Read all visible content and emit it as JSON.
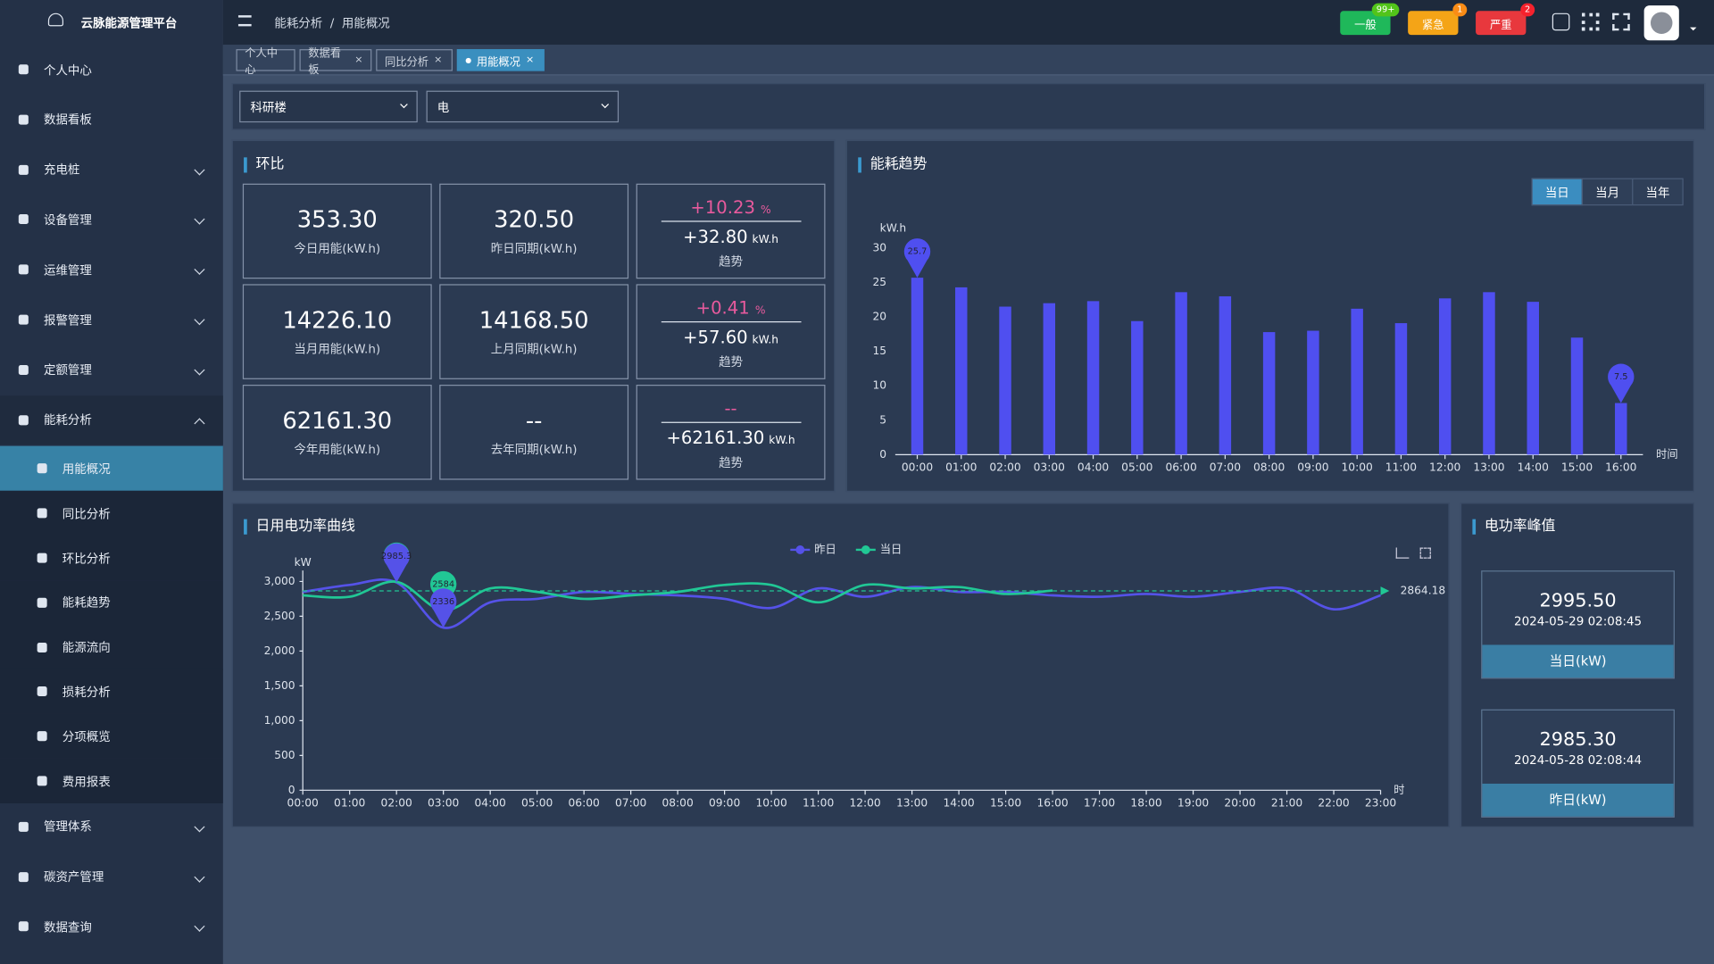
{
  "header": {
    "logo": "云脉能源管理平台",
    "breadcrumb": [
      "能耗分析",
      "用能概况"
    ],
    "alerts": [
      {
        "label": "一般",
        "count": "99+"
      },
      {
        "label": "紧急",
        "count": "1"
      },
      {
        "label": "严重",
        "count": "2"
      }
    ]
  },
  "sidebar": {
    "items": [
      {
        "label": "个人中心"
      },
      {
        "label": "数据看板"
      },
      {
        "label": "充电桩",
        "expandable": true
      },
      {
        "label": "设备管理",
        "expandable": true
      },
      {
        "label": "运维管理",
        "expandable": true
      },
      {
        "label": "报警管理",
        "expandable": true
      },
      {
        "label": "定额管理",
        "expandable": true
      },
      {
        "label": "能耗分析",
        "expandable": true,
        "expanded": true,
        "children": [
          {
            "label": "用能概况",
            "active": true
          },
          {
            "label": "同比分析"
          },
          {
            "label": "环比分析"
          },
          {
            "label": "能耗趋势"
          },
          {
            "label": "能源流向"
          },
          {
            "label": "损耗分析"
          },
          {
            "label": "分项概览"
          },
          {
            "label": "费用报表"
          }
        ]
      },
      {
        "label": "管理体系",
        "expandable": true
      },
      {
        "label": "碳资产管理",
        "expandable": true
      },
      {
        "label": "数据查询",
        "expandable": true
      }
    ]
  },
  "tabs": [
    {
      "label": "个人中心",
      "closable": false
    },
    {
      "label": "数据看板",
      "closable": true
    },
    {
      "label": "同比分析",
      "closable": true
    },
    {
      "label": "用能概况",
      "closable": true,
      "active": true
    }
  ],
  "filters": [
    "科研楼",
    "电"
  ],
  "ratio_panel": {
    "title": "环比",
    "percent_unit": "%",
    "energy_unit": "kW.h",
    "rows": [
      {
        "current": {
          "value": "353.30",
          "label": "今日用能(kW.h)"
        },
        "previous": {
          "value": "320.50",
          "label": "昨日同期(kW.h)"
        },
        "change": {
          "percent": "+10.23",
          "diff": "+32.80",
          "label": "趋势"
        }
      },
      {
        "current": {
          "value": "14226.10",
          "label": "当月用能(kW.h)"
        },
        "previous": {
          "value": "14168.50",
          "label": "上月同期(kW.h)"
        },
        "change": {
          "percent": "+0.41",
          "diff": "+57.60",
          "label": "趋势"
        }
      },
      {
        "current": {
          "value": "62161.30",
          "label": "今年用能(kW.h)"
        },
        "previous": {
          "value": "--",
          "label": "去年同期(kW.h)"
        },
        "change": {
          "percent": "--",
          "diff": "+62161.30",
          "label": "趋势"
        }
      }
    ]
  },
  "chart_data": [
    {
      "type": "bar",
      "title": "能耗趋势",
      "buttons": [
        "当日",
        "当月",
        "当年"
      ],
      "active_button": 0,
      "y_label": "kW.h",
      "x_label": "时间",
      "categories": [
        "00:00",
        "01:00",
        "02:00",
        "03:00",
        "04:00",
        "05:00",
        "06:00",
        "07:00",
        "08:00",
        "09:00",
        "10:00",
        "11:00",
        "12:00",
        "13:00",
        "14:00",
        "15:00",
        "16:00"
      ],
      "values": [
        25.7,
        24.3,
        21.5,
        22,
        22.3,
        19.4,
        23.6,
        23,
        17.8,
        18,
        21.2,
        19.1,
        22.7,
        23.6,
        22.2,
        17,
        7.5
      ],
      "color": "#4f4ff0",
      "mark_points": [
        "max",
        "min"
      ],
      "ylim": [
        0,
        30
      ],
      "yticks": [
        0,
        5,
        10,
        15,
        20,
        25,
        30
      ]
    },
    {
      "type": "line",
      "title": "日用电功率曲线",
      "y_label": "kW",
      "x_label": "时",
      "categories": [
        "00:00",
        "01:00",
        "02:00",
        "03:00",
        "04:00",
        "05:00",
        "06:00",
        "07:00",
        "08:00",
        "09:00",
        "10:00",
        "11:00",
        "12:00",
        "13:00",
        "14:00",
        "15:00",
        "16:00",
        "17:00",
        "18:00",
        "19:00",
        "20:00",
        "21:00",
        "22:00",
        "23:00"
      ],
      "series": [
        {
          "name": "昨日",
          "color": "#5552e8",
          "values": [
            2850,
            2950,
            2985.3,
            2336,
            2700,
            2750,
            2850,
            2820,
            2800,
            2750,
            2620,
            2900,
            2780,
            2920,
            2850,
            2850,
            2800,
            2780,
            2820,
            2780,
            2850,
            2900,
            2600,
            2800
          ]
        },
        {
          "name": "当日",
          "color": "#21c795",
          "values": [
            2800,
            2780,
            2995.5,
            2584,
            2900,
            2850,
            2750,
            2800,
            2850,
            2950,
            2950,
            2700,
            2950,
            2900,
            2920,
            2820,
            2870,
            null,
            null,
            null,
            null,
            null,
            null,
            null
          ]
        }
      ],
      "mark_points": [
        "max",
        "min"
      ],
      "mark_line": 2864.18,
      "ylim": [
        0,
        3000
      ],
      "yticks": [
        0,
        500,
        {
          "value": 1000,
          "label": "1,000"
        },
        {
          "value": 1500,
          "label": "1,500"
        },
        {
          "value": 2000,
          "label": "2,000"
        },
        {
          "value": 2500,
          "label": "2,500"
        },
        {
          "value": 3000,
          "label": "3,000"
        }
      ]
    }
  ],
  "peak_panel": {
    "title": "电功率峰值",
    "cards": [
      {
        "value": "2995.50",
        "time": "2024-05-29 02:08:45",
        "label": "当日(kW)"
      },
      {
        "value": "2985.30",
        "time": "2024-05-28 02:08:44",
        "label": "昨日(kW)"
      }
    ]
  }
}
